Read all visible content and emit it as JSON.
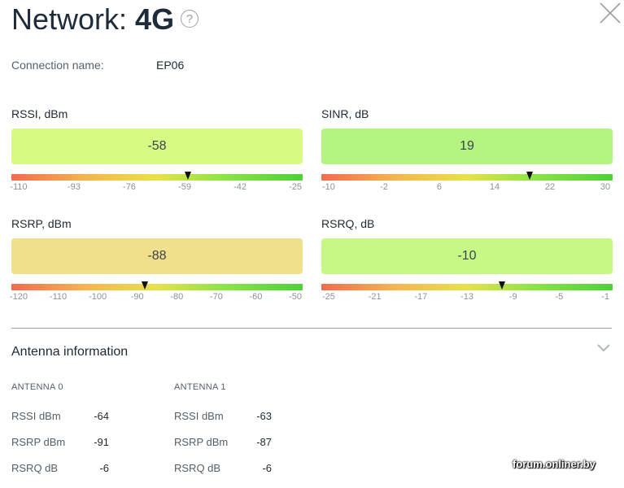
{
  "header": {
    "title_prefix": "Network:",
    "title_value": "4G",
    "help_symbol": "?"
  },
  "connection": {
    "label": "Connection name:",
    "value": "EP06"
  },
  "metrics": [
    {
      "label": "RSSI, dBm",
      "value": "-58",
      "value_num": -58,
      "box_color": "#d6fa84",
      "ticks": [
        "-110",
        "-93",
        "-76",
        "-59",
        "-42",
        "-25"
      ],
      "range": [
        -110,
        -25
      ]
    },
    {
      "label": "SINR, dB",
      "value": "19",
      "value_num": 19,
      "box_color": "#b4f581",
      "ticks": [
        "-10",
        "-2",
        "6",
        "14",
        "22",
        "30"
      ],
      "range": [
        -10,
        30
      ]
    },
    {
      "label": "RSRP, dBm",
      "value": "-88",
      "value_num": -88,
      "box_color": "#f0e08c",
      "ticks": [
        "-120",
        "-110",
        "-100",
        "-90",
        "-80",
        "-70",
        "-60",
        "-50"
      ],
      "range": [
        -120,
        -50
      ]
    },
    {
      "label": "RSRQ, dB",
      "value": "-10",
      "value_num": -10,
      "box_color": "#c7f886",
      "ticks": [
        "-25",
        "-21",
        "-17",
        "-13",
        "-9",
        "-5",
        "-1"
      ],
      "range": [
        -25,
        -1
      ]
    }
  ],
  "antenna": {
    "heading": "Antenna information",
    "columns": [
      {
        "title": "ANTENNA 0",
        "rows": [
          {
            "name": "RSSI dBm",
            "value": "-64"
          },
          {
            "name": "RSRP dBm",
            "value": "-91"
          },
          {
            "name": "RSRQ dB",
            "value": "-6"
          }
        ]
      },
      {
        "title": "ANTENNA 1",
        "rows": [
          {
            "name": "RSSI dBm",
            "value": "-63"
          },
          {
            "name": "RSRP dBm",
            "value": "-87"
          },
          {
            "name": "RSRQ dB",
            "value": "-6"
          }
        ]
      }
    ]
  },
  "watermark": "forum.onliner.by",
  "icons": {
    "help": "question-circle-icon",
    "close": "close-icon",
    "expand": "chevron-down-icon"
  }
}
